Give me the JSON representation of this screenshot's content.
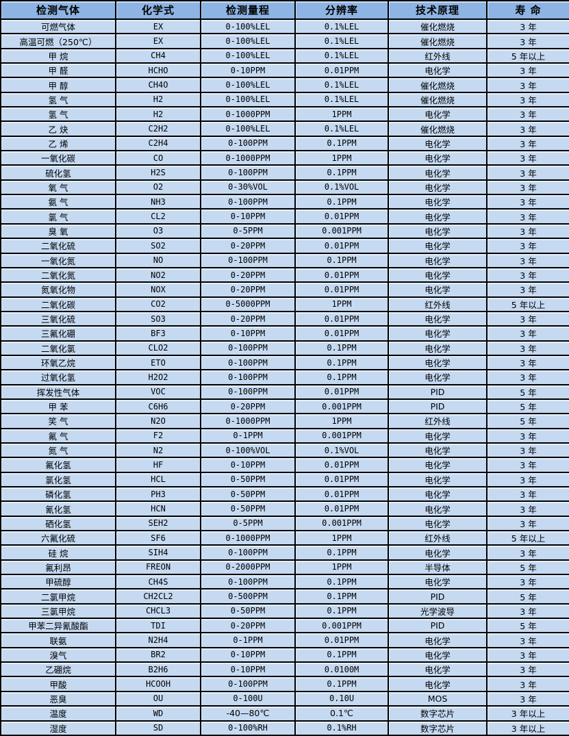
{
  "colors": {
    "header_bg": "#8db4e2",
    "body_bg": "#c5d9f1",
    "border": "#000000",
    "text": "#000000"
  },
  "table": {
    "headers": [
      "检测气体",
      "化学式",
      "检测量程",
      "分辨率",
      "技术原理",
      "寿 命"
    ],
    "rows": [
      [
        "可燃气体",
        "EX",
        "0-100%LEL",
        "0.1%LEL",
        "催化燃烧",
        "3 年"
      ],
      [
        "高温可燃（250℃）",
        "EX",
        "0-100%LEL",
        "0.1%LEL",
        "催化燃烧",
        "3 年"
      ],
      [
        "甲 烷",
        "CH4",
        "0-100%LEL",
        "0.1%LEL",
        "红外线",
        "5 年以上"
      ],
      [
        "甲 醛",
        "HCHO",
        "0-10PPM",
        "0.01PPM",
        "电化学",
        "3 年"
      ],
      [
        "甲 醇",
        "CH4O",
        "0-100%LEL",
        "0.1%LEL",
        "催化燃烧",
        "3 年"
      ],
      [
        "氢 气",
        "H2",
        "0-100%LEL",
        "0.1%LEL",
        "催化燃烧",
        "3 年"
      ],
      [
        "氢 气",
        "H2",
        "0-1000PPM",
        "1PPM",
        "电化学",
        "3 年"
      ],
      [
        "乙 炔",
        "C2H2",
        "0-100%LEL",
        "0.1%LEL",
        "催化燃烧",
        "3 年"
      ],
      [
        "乙 烯",
        "C2H4",
        "0-100PPM",
        "0.1PPM",
        "电化学",
        "3 年"
      ],
      [
        "一氧化碳",
        "CO",
        "0-1000PPM",
        "1PPM",
        "电化学",
        "3 年"
      ],
      [
        "硫化氢",
        "H2S",
        "0-100PPM",
        "0.1PPM",
        "电化学",
        "3 年"
      ],
      [
        "氧 气",
        "O2",
        "0-30%VOL",
        "0.1%VOL",
        "电化学",
        "3 年"
      ],
      [
        "氨 气",
        "NH3",
        "0-100PPM",
        "0.1PPM",
        "电化学",
        "3 年"
      ],
      [
        "氯 气",
        "CL2",
        "0-10PPM",
        "0.01PPM",
        "电化学",
        "3 年"
      ],
      [
        "臭 氧",
        "O3",
        "0-5PPM",
        "0.001PPM",
        "电化学",
        "3 年"
      ],
      [
        "二氧化硫",
        "SO2",
        "0-20PPM",
        "0.01PPM",
        "电化学",
        "3 年"
      ],
      [
        "一氧化氮",
        "NO",
        "0-100PPM",
        "0.1PPM",
        "电化学",
        "3 年"
      ],
      [
        "二氧化氮",
        "NO2",
        "0-20PPM",
        "0.01PPM",
        "电化学",
        "3 年"
      ],
      [
        "氮氧化物",
        "NOX",
        "0-20PPM",
        "0.01PPM",
        "电化学",
        "3 年"
      ],
      [
        "二氧化碳",
        "CO2",
        "0-5000PPM",
        "1PPM",
        "红外线",
        "5 年以上"
      ],
      [
        "三氧化硫",
        "SO3",
        "0-20PPM",
        "0.01PPM",
        "电化学",
        "3 年"
      ],
      [
        "三氟化硼",
        "BF3",
        "0-10PPM",
        "0.01PPM",
        "电化学",
        "3 年"
      ],
      [
        "二氧化氯",
        "CLO2",
        "0-100PPM",
        "0.1PPM",
        "电化学",
        "3 年"
      ],
      [
        "环氧乙烷",
        "ETO",
        "0-100PPM",
        "0.1PPM",
        "电化学",
        "3 年"
      ],
      [
        "过氧化氢",
        "H2O2",
        "0-100PPM",
        "0.1PPM",
        "电化学",
        "3 年"
      ],
      [
        "挥发性气体",
        "VOC",
        "0-100PPM",
        "0.01PPM",
        "PID",
        "5 年"
      ],
      [
        "甲 苯",
        "C6H6",
        "0-20PPM",
        "0.001PPM",
        "PID",
        "5 年"
      ],
      [
        "笑 气",
        "N2O",
        "0-1000PPM",
        "1PPM",
        "红外线",
        "5 年"
      ],
      [
        "氟 气",
        "F2",
        "0-1PPM",
        "0.001PPM",
        "电化学",
        "3 年"
      ],
      [
        "氮 气",
        "N2",
        "0-100%VOL",
        "0.1%VOL",
        "电化学",
        "3 年"
      ],
      [
        "氟化氢",
        "HF",
        "0-10PPM",
        "0.01PPM",
        "电化学",
        "3 年"
      ],
      [
        "氯化氢",
        "HCL",
        "0-50PPM",
        "0.01PPM",
        "电化学",
        "3 年"
      ],
      [
        "磷化氢",
        "PH3",
        "0-50PPM",
        "0.01PPM",
        "电化学",
        "3 年"
      ],
      [
        "氰化氢",
        "HCN",
        "0-50PPM",
        "0.01PPM",
        "电化学",
        "3 年"
      ],
      [
        "硒化氢",
        "SEH2",
        "0-5PPM",
        "0.001PPM",
        "电化学",
        "3 年"
      ],
      [
        "六氟化硫",
        "SF6",
        "0-1000PPM",
        "1PPM",
        "红外线",
        "5 年以上"
      ],
      [
        "硅 烷",
        "SIH4",
        "0-100PPM",
        "0.1PPM",
        "电化学",
        "3 年"
      ],
      [
        "氟利昂",
        "FREON",
        "0-2000PPM",
        "1PPM",
        "半导体",
        "5 年"
      ],
      [
        "甲硫醇",
        "CH4S",
        "0-100PPM",
        "0.1PPM",
        "电化学",
        "3 年"
      ],
      [
        "二氯甲烷",
        "CH2CL2",
        "0-500PPM",
        "0.1PPM",
        "PID",
        "5 年"
      ],
      [
        "三氯甲烷",
        "CHCL3",
        "0-50PPM",
        "0.1PPM",
        "光学波导",
        "3 年"
      ],
      [
        "甲苯二异氰酸酯",
        "TDI",
        "0-20PPM",
        "0.001PPM",
        "PID",
        "5 年"
      ],
      [
        "联氨",
        "N2H4",
        "0-1PPM",
        "0.01PPM",
        "电化学",
        "3 年"
      ],
      [
        "溴气",
        "BR2",
        "0-10PPM",
        "0.1PPM",
        "电化学",
        "3 年"
      ],
      [
        "乙硼烷",
        "B2H6",
        "0-10PPM",
        "0.0100M",
        "电化学",
        "3 年"
      ],
      [
        "甲酸",
        "HCOOH",
        "0-100PPM",
        "0.1PPM",
        "电化学",
        "3 年"
      ],
      [
        "恶臭",
        "OU",
        "0-100U",
        "0.10U",
        "MOS",
        "3 年"
      ],
      [
        "温度",
        "WD",
        "-40—80℃",
        "0.1℃",
        "数字芯片",
        "3 年以上"
      ],
      [
        "湿度",
        "SD",
        "0-100%RH",
        "0.1%RH",
        "数字芯片",
        "3 年以上"
      ]
    ]
  }
}
